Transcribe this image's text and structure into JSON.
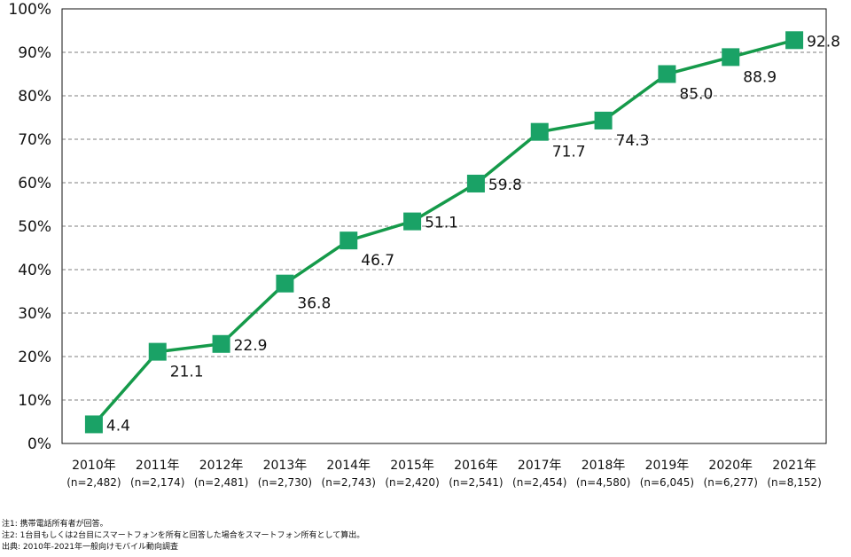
{
  "chart_data": {
    "type": "line",
    "categories": [
      "2010年",
      "2011年",
      "2012年",
      "2013年",
      "2014年",
      "2015年",
      "2016年",
      "2017年",
      "2018年",
      "2019年",
      "2020年",
      "2021年"
    ],
    "sample_sizes": [
      "(n=2,482)",
      "(n=2,174)",
      "(n=2,481)",
      "(n=2,730)",
      "(n=2,743)",
      "(n=2,420)",
      "(n=2,541)",
      "(n=2,454)",
      "(n=4,580)",
      "(n=6,045)",
      "(n=6,277)",
      "(n=8,152)"
    ],
    "series": [
      {
        "values": [
          4.4,
          21.1,
          22.9,
          36.8,
          46.7,
          51.1,
          59.8,
          71.7,
          74.3,
          85.0,
          88.9,
          92.8
        ],
        "labels": [
          "4.4",
          "21.1",
          "22.9",
          "36.8",
          "46.7",
          "51.1",
          "59.8",
          "71.7",
          "74.3",
          "85.0",
          "88.9",
          "92.8"
        ]
      }
    ],
    "ylim": [
      0,
      100
    ],
    "yticks": [
      "0%",
      "10%",
      "20%",
      "30%",
      "40%",
      "50%",
      "60%",
      "70%",
      "80%",
      "90%",
      "100%"
    ],
    "grid": true,
    "colors": {
      "line": "#159a4a",
      "marker": "#1aa266",
      "grid": "#555555",
      "axis": "#111111"
    }
  },
  "notes": [
    "注1: 携帯電話所有者が回答。",
    "注2: 1台目もしくは2台目にスマートフォンを所有と回答した場合をスマートフォン所有として算出。",
    "出典: 2010年-2021年一般向けモバイル動向調査"
  ]
}
